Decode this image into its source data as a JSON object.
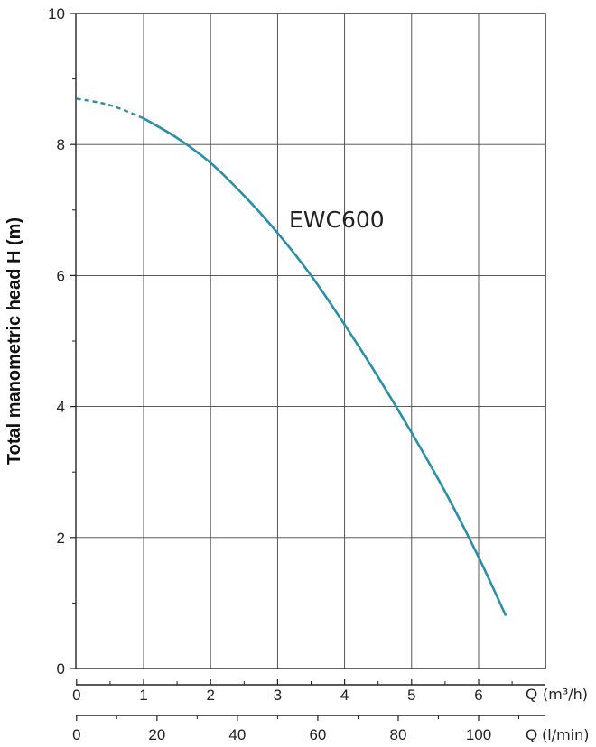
{
  "chart_data": {
    "type": "line",
    "ylabel": "Total manometric head H (m)",
    "ylim": [
      0,
      10
    ],
    "yticks": [
      0,
      2,
      4,
      6,
      8,
      10
    ],
    "xlim": [
      0,
      7
    ],
    "xticks": [
      0,
      1,
      2,
      3,
      4,
      5,
      6
    ],
    "xlabel": "Q",
    "xunit": "(m³/h)",
    "x2label": "Q",
    "x2unit": "(l/min)",
    "x2lim": [
      0,
      116.67
    ],
    "x2ticks": [
      0,
      20,
      40,
      60,
      80,
      100
    ],
    "grid": true,
    "series": [
      {
        "name": "EWC600",
        "color": "#2a8fa6",
        "dashed_until_x": 1.0,
        "x": [
          0,
          0.5,
          1.0,
          1.5,
          2.0,
          2.5,
          3.0,
          3.5,
          4.0,
          4.5,
          5.0,
          5.5,
          6.0,
          6.4
        ],
        "y": [
          8.7,
          8.6,
          8.4,
          8.1,
          7.72,
          7.22,
          6.65,
          6.0,
          5.25,
          4.45,
          3.6,
          2.7,
          1.7,
          0.82
        ]
      }
    ]
  }
}
